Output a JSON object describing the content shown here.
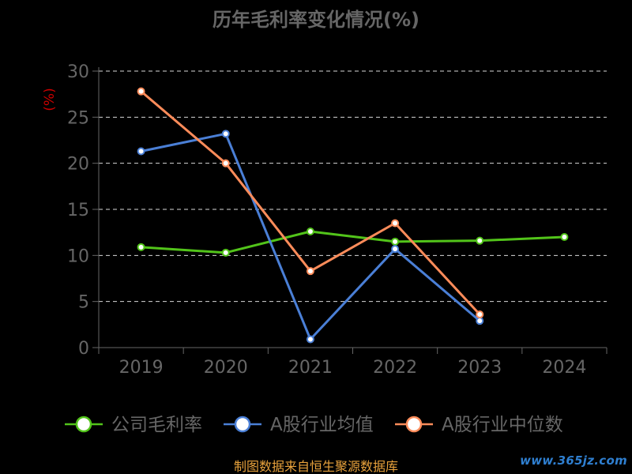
{
  "chart_data": {
    "type": "line",
    "title": "历年毛利率变化情况(%)",
    "ylabel": "(%)",
    "xlabel": "",
    "categories": [
      "2019",
      "2020",
      "2021",
      "2022",
      "2023",
      "2024"
    ],
    "ylim": [
      0,
      30
    ],
    "yticks": [
      0,
      5,
      10,
      15,
      20,
      25,
      30
    ],
    "grid": true,
    "legend_position": "bottom",
    "series": [
      {
        "name": "公司毛利率",
        "color": "#52c41a",
        "values": [
          10.9,
          10.3,
          12.6,
          11.5,
          11.6,
          12.0
        ]
      },
      {
        "name": "A股行业均值",
        "color": "#4a7fd6",
        "values": [
          21.3,
          23.2,
          0.9,
          10.7,
          2.9,
          null
        ]
      },
      {
        "name": "A股行业中位数",
        "color": "#ff8c5a",
        "values": [
          27.8,
          20.0,
          8.3,
          13.5,
          3.6,
          null
        ]
      }
    ]
  },
  "source_note": "制图数据来自恒生聚源数据库",
  "watermark": "www.365jz.com",
  "colors": {
    "title": "#666666",
    "axis": "#666666",
    "grid": "#ffffff",
    "ylabel": "#cc0000",
    "source_note": "#e8a23c"
  }
}
